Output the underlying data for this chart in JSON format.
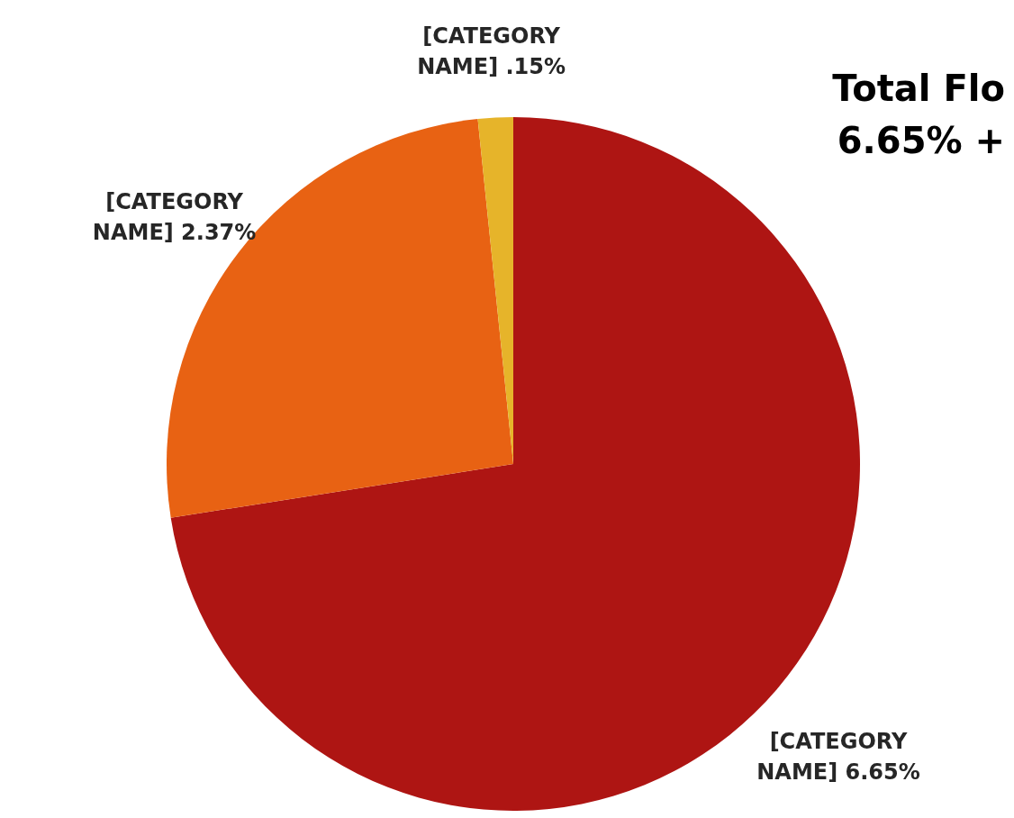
{
  "chart_data": {
    "type": "pie",
    "title": "Total Flo",
    "subtitle": "6.65% +",
    "categories": [
      "[CATEGORY NAME]",
      "[CATEGORY NAME]",
      "[CATEGORY NAME]"
    ],
    "values": [
      6.65,
      2.37,
      0.15
    ],
    "value_labels": [
      "6.65%",
      "2.37%",
      ".15%"
    ],
    "colors": [
      "#ae1513",
      "#e86213",
      "#e6b42a"
    ]
  }
}
